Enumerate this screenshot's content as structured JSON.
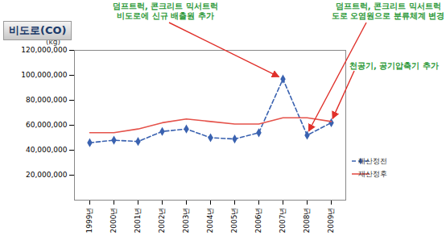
{
  "chart_data": {
    "type": "line",
    "title": "비도로(CO)",
    "y_label": "(kg)",
    "categories": [
      "1999년",
      "2000년",
      "2001년",
      "2002년",
      "2003년",
      "2004년",
      "2005년",
      "2006년",
      "2007년",
      "2008년",
      "2009년"
    ],
    "series": [
      {
        "name": "재산정전",
        "color": "#3a62b0",
        "line_style": "dashed",
        "marker": "diamond",
        "values": [
          46000000,
          48000000,
          47000000,
          55000000,
          57000000,
          50000000,
          49000000,
          54000000,
          97000000,
          52000000,
          62000000
        ]
      },
      {
        "name": "재산정후",
        "color": "#e5534b",
        "line_style": "solid",
        "values": [
          54000000,
          54000000,
          57000000,
          62000000,
          65000000,
          63000000,
          61000000,
          61000000,
          66000000,
          66000000,
          63000000
        ]
      }
    ],
    "ylim": [
      0,
      120000000
    ],
    "yticks": [
      {
        "value": 20000000,
        "label": "20,000,000"
      },
      {
        "value": 40000000,
        "label": "40,000,000"
      },
      {
        "value": 60000000,
        "label": "60,000,000"
      },
      {
        "value": 80000000,
        "label": "80,000,000"
      },
      {
        "value": 100000000,
        "label": "100,000,000"
      },
      {
        "value": 120000000,
        "label": "120,000,000"
      }
    ],
    "grid": false,
    "legend": "right",
    "annotations": [
      {
        "text": [
          "덤프트럭, 콘크리트 믹서트럭",
          "비도로에 신규 배출원 추가"
        ],
        "x": "2007년"
      },
      {
        "text": [
          "덤프트럭, 콘크리트 믹서트럭",
          "도로 오염원으로 분류체계 변경"
        ],
        "x": "2008년"
      },
      {
        "text": [
          "천공기, 공기압축기 추가"
        ],
        "x": "2009년"
      }
    ]
  }
}
